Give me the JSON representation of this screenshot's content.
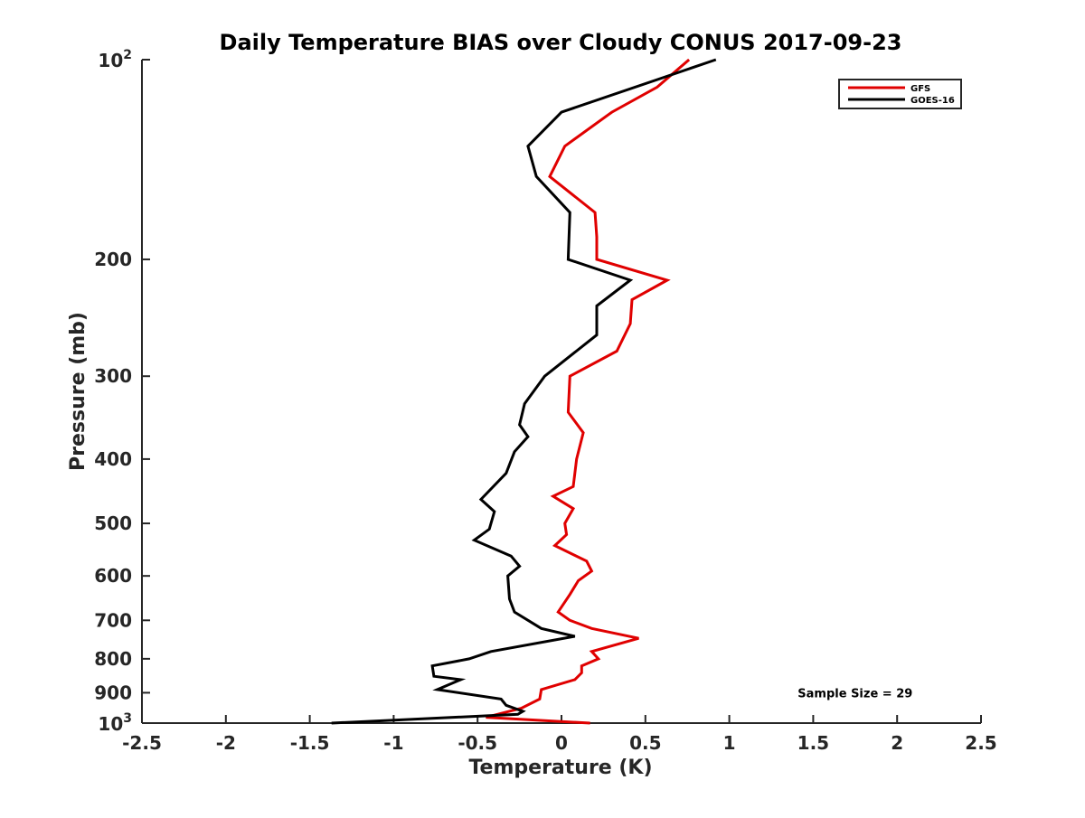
{
  "chart_data": {
    "type": "line",
    "title": "Daily Temperature BIAS over Cloudy CONUS 2017-09-23",
    "xlabel": "Temperature (K)",
    "ylabel": "Pressure (mb)",
    "xlim": [
      -2.5,
      2.5
    ],
    "ylim": [
      100,
      1000
    ],
    "y_scale": "log",
    "y_reversed": true,
    "grid": false,
    "legend_position": "top-right",
    "x_ticks": [
      {
        "value": -2.5,
        "label": "-2.5"
      },
      {
        "value": -2,
        "label": "-2"
      },
      {
        "value": -1.5,
        "label": "-1.5"
      },
      {
        "value": -1,
        "label": "-1"
      },
      {
        "value": -0.5,
        "label": "-0.5"
      },
      {
        "value": 0,
        "label": "0"
      },
      {
        "value": 0.5,
        "label": "0.5"
      },
      {
        "value": 1,
        "label": "1"
      },
      {
        "value": 1.5,
        "label": "1.5"
      },
      {
        "value": 2,
        "label": "2"
      },
      {
        "value": 2.5,
        "label": "2.5"
      }
    ],
    "y_ticks": [
      {
        "value": 200,
        "label": "200"
      },
      {
        "value": 300,
        "label": "300"
      },
      {
        "value": 400,
        "label": "400"
      },
      {
        "value": 500,
        "label": "500"
      },
      {
        "value": 600,
        "label": "600"
      },
      {
        "value": 700,
        "label": "700"
      },
      {
        "value": 800,
        "label": "800"
      },
      {
        "value": 900,
        "label": "900"
      }
    ],
    "y_ticks_power": [
      {
        "value": 100,
        "base": "10",
        "exp": "2"
      },
      {
        "value": 1000,
        "base": "10",
        "exp": "3"
      }
    ],
    "series": [
      {
        "name": "GFS",
        "color": "#e00000",
        "points": [
          {
            "x": 0.76,
            "y": 100
          },
          {
            "x": 0.57,
            "y": 110
          },
          {
            "x": 0.3,
            "y": 120
          },
          {
            "x": 0.02,
            "y": 135
          },
          {
            "x": -0.07,
            "y": 150
          },
          {
            "x": 0.2,
            "y": 170
          },
          {
            "x": 0.21,
            "y": 185
          },
          {
            "x": 0.21,
            "y": 200
          },
          {
            "x": 0.63,
            "y": 215
          },
          {
            "x": 0.42,
            "y": 230
          },
          {
            "x": 0.41,
            "y": 250
          },
          {
            "x": 0.33,
            "y": 275
          },
          {
            "x": 0.05,
            "y": 300
          },
          {
            "x": 0.04,
            "y": 340
          },
          {
            "x": 0.13,
            "y": 365
          },
          {
            "x": 0.09,
            "y": 400
          },
          {
            "x": 0.07,
            "y": 440
          },
          {
            "x": -0.05,
            "y": 455
          },
          {
            "x": 0.07,
            "y": 475
          },
          {
            "x": 0.02,
            "y": 500
          },
          {
            "x": 0.03,
            "y": 520
          },
          {
            "x": -0.04,
            "y": 540
          },
          {
            "x": 0.15,
            "y": 570
          },
          {
            "x": 0.18,
            "y": 590
          },
          {
            "x": 0.1,
            "y": 610
          },
          {
            "x": 0.05,
            "y": 640
          },
          {
            "x": -0.02,
            "y": 680
          },
          {
            "x": 0.05,
            "y": 700
          },
          {
            "x": 0.18,
            "y": 720
          },
          {
            "x": 0.46,
            "y": 745
          },
          {
            "x": 0.18,
            "y": 780
          },
          {
            "x": 0.22,
            "y": 800
          },
          {
            "x": 0.12,
            "y": 820
          },
          {
            "x": 0.12,
            "y": 840
          },
          {
            "x": 0.08,
            "y": 860
          },
          {
            "x": -0.12,
            "y": 890
          },
          {
            "x": -0.13,
            "y": 920
          },
          {
            "x": -0.24,
            "y": 950
          },
          {
            "x": -0.45,
            "y": 980
          },
          {
            "x": 0.17,
            "y": 1000
          }
        ]
      },
      {
        "name": "GOES-16",
        "color": "#000000",
        "points": [
          {
            "x": 0.92,
            "y": 100
          },
          {
            "x": 0.0,
            "y": 120
          },
          {
            "x": -0.2,
            "y": 135
          },
          {
            "x": -0.15,
            "y": 150
          },
          {
            "x": 0.05,
            "y": 170
          },
          {
            "x": 0.04,
            "y": 200
          },
          {
            "x": 0.41,
            "y": 215
          },
          {
            "x": 0.21,
            "y": 235
          },
          {
            "x": 0.21,
            "y": 260
          },
          {
            "x": -0.1,
            "y": 300
          },
          {
            "x": -0.22,
            "y": 330
          },
          {
            "x": -0.25,
            "y": 355
          },
          {
            "x": -0.2,
            "y": 370
          },
          {
            "x": -0.28,
            "y": 390
          },
          {
            "x": -0.33,
            "y": 420
          },
          {
            "x": -0.48,
            "y": 460
          },
          {
            "x": -0.4,
            "y": 480
          },
          {
            "x": -0.43,
            "y": 510
          },
          {
            "x": -0.52,
            "y": 530
          },
          {
            "x": -0.3,
            "y": 560
          },
          {
            "x": -0.25,
            "y": 580
          },
          {
            "x": -0.32,
            "y": 600
          },
          {
            "x": -0.31,
            "y": 650
          },
          {
            "x": -0.28,
            "y": 680
          },
          {
            "x": -0.12,
            "y": 720
          },
          {
            "x": 0.08,
            "y": 740
          },
          {
            "x": -0.42,
            "y": 780
          },
          {
            "x": -0.55,
            "y": 800
          },
          {
            "x": -0.77,
            "y": 820
          },
          {
            "x": -0.76,
            "y": 850
          },
          {
            "x": -0.6,
            "y": 860
          },
          {
            "x": -0.74,
            "y": 890
          },
          {
            "x": -0.36,
            "y": 920
          },
          {
            "x": -0.33,
            "y": 940
          },
          {
            "x": -0.23,
            "y": 960
          },
          {
            "x": -0.26,
            "y": 970
          },
          {
            "x": -1.37,
            "y": 1000
          }
        ]
      }
    ],
    "annotations": [
      {
        "text": "Sample Size = 29",
        "x": 1.75,
        "y": 900
      }
    ]
  }
}
